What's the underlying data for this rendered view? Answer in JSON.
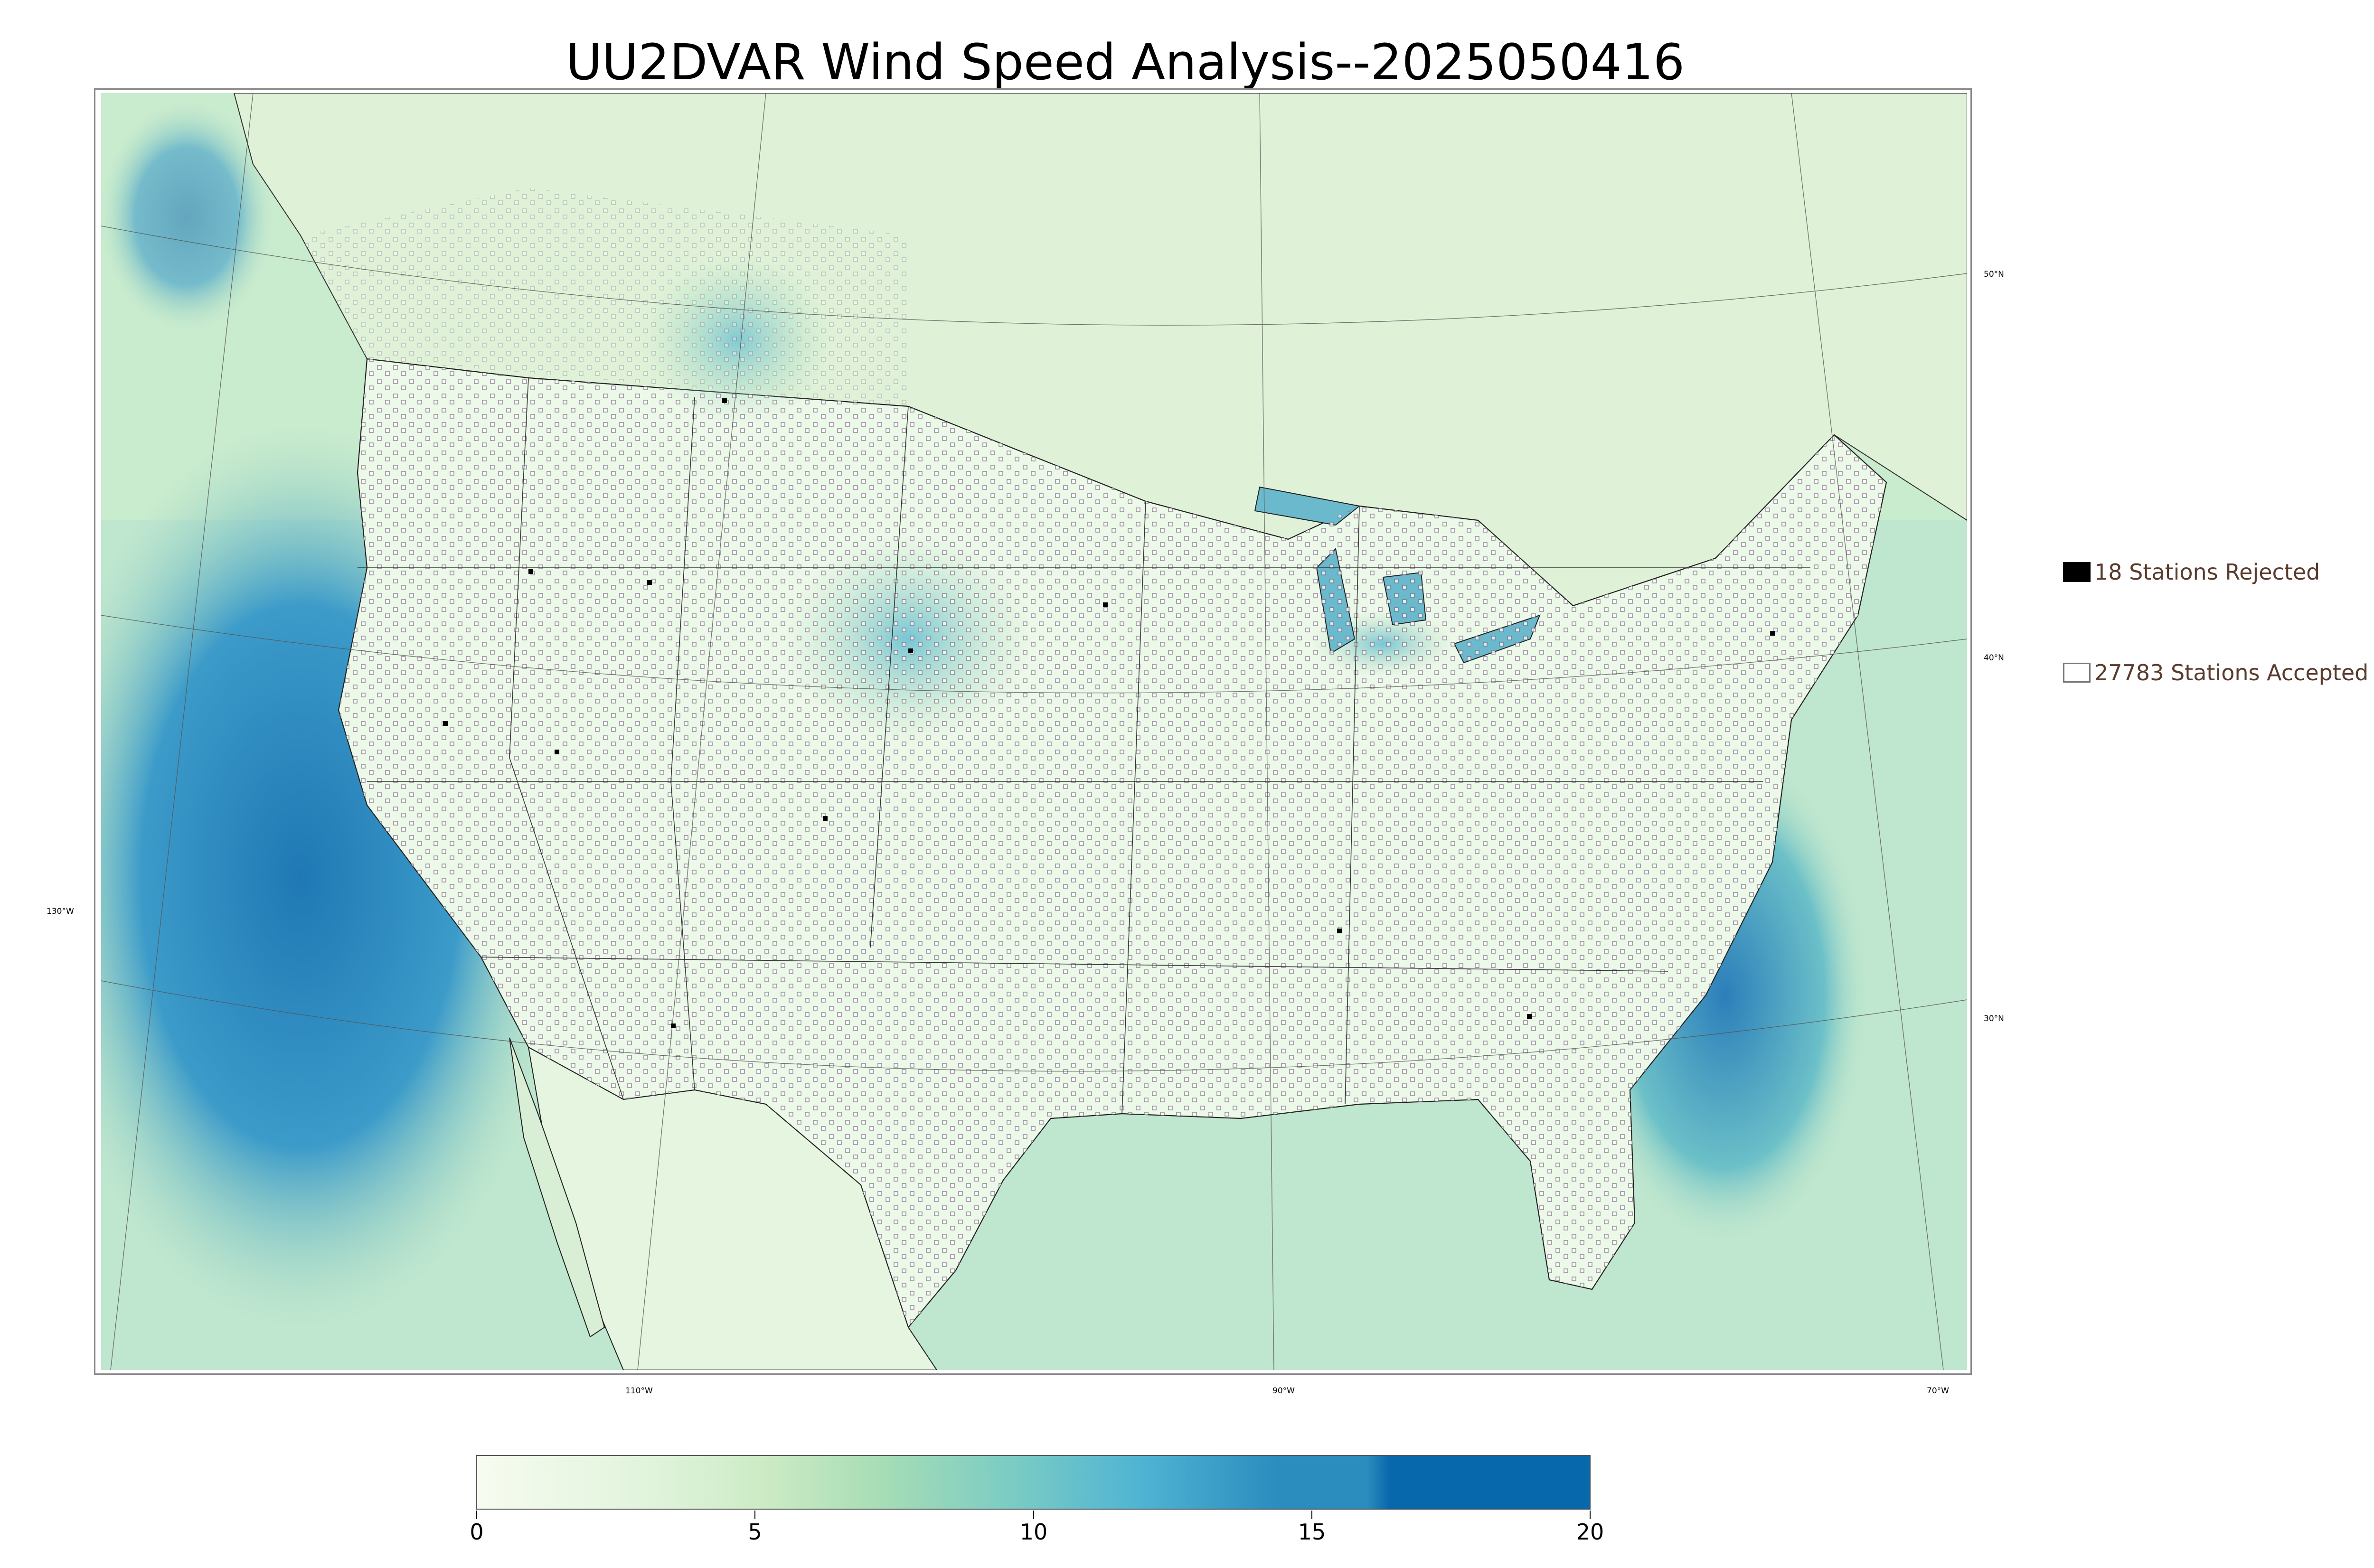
{
  "title": "UU2DVAR Wind Speed Analysis--2025050416",
  "map": {
    "projection": "lambert-conformal",
    "field": "wind speed",
    "colormap": [
      "#f7fcf0",
      "#e0f3db",
      "#ccebc5",
      "#a8ddb5",
      "#7bccc4",
      "#4eb3d3",
      "#2b8cbe",
      "#0868ac"
    ],
    "land_color": "#eef8ea",
    "ocean_color": "#b7e2cf",
    "station_marker_color": "#7a6a80",
    "longitude_labels": [
      "130°W",
      "110°W",
      "90°W",
      "70°W"
    ],
    "latitude_labels": [
      "50°N",
      "40°N",
      "30°N"
    ]
  },
  "legend": {
    "rejected_label": "18 Stations Rejected",
    "accepted_label": "27783 Stations Accepted",
    "rejected_color": "#000000",
    "accepted_color": "#ffffff"
  },
  "colorbar": {
    "min": 0,
    "max": 20,
    "ticks": [
      "0",
      "5",
      "10",
      "15",
      "20"
    ]
  }
}
